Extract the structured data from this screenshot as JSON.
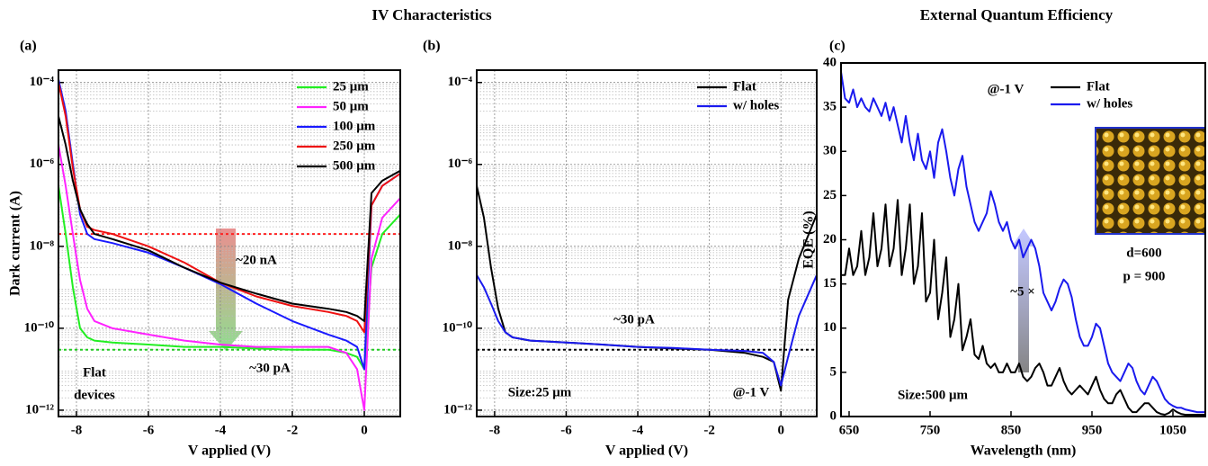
{
  "figure_titles": [
    "IV Characteristics",
    "External Quantum Efficiency"
  ],
  "chart_data": [
    {
      "type": "line",
      "panel_label": "(a)",
      "x_label": "V applied (V)",
      "y_label": "Dark current (A)",
      "y_scale": "log",
      "grid": true,
      "minor_grid": true,
      "legend": "upper right",
      "xlim": [
        -8.5,
        1
      ],
      "xticks": [
        -8,
        -6,
        -4,
        -2,
        0
      ],
      "ylim": [
        7e-13,
        0.0002
      ],
      "yticks": [
        {
          "value": 0.0001,
          "label": "10⁻⁴"
        },
        {
          "value": 1e-06,
          "label": "10⁻⁶"
        },
        {
          "value": 1e-08,
          "label": "10⁻⁸"
        },
        {
          "value": 1e-10,
          "label": "10⁻¹⁰"
        },
        {
          "value": 1e-12,
          "label": "10⁻¹²"
        }
      ],
      "x": [
        -8.5,
        -8.3,
        -8.1,
        -7.9,
        -7.7,
        -7.5,
        -7,
        -6,
        -5,
        -4,
        -3,
        -2,
        -1,
        -0.5,
        -0.2,
        0,
        0.2,
        0.5,
        1
      ],
      "series": [
        {
          "name": "25 μm",
          "color": "#22ee22",
          "values": [
            3e-07,
            2e-08,
            1e-09,
            1e-10,
            6e-11,
            5e-11,
            4.5e-11,
            4e-11,
            3.5e-11,
            3.5e-11,
            3.2e-11,
            3e-11,
            3e-11,
            2.5e-11,
            2e-11,
            1e-11,
            3e-09,
            2e-08,
            6e-08
          ]
        },
        {
          "name": "50 μm",
          "color": "#ff22ff",
          "values": [
            3e-06,
            3e-07,
            2e-08,
            1.5e-09,
            3e-10,
            1.5e-10,
            1e-10,
            7e-11,
            5e-11,
            4e-11,
            3.5e-11,
            3.5e-11,
            3.5e-11,
            2.5e-11,
            1e-11,
            1e-12,
            5e-09,
            5e-08,
            1.5e-07
          ]
        },
        {
          "name": "100 μm",
          "color": "#1a1aff",
          "values": [
            0.00012,
            2e-05,
            1e-06,
            6e-08,
            2e-08,
            1.5e-08,
            1.2e-08,
            7e-09,
            3e-09,
            1.2e-09,
            4e-10,
            1.5e-10,
            7e-11,
            5e-11,
            3.5e-11,
            1e-11,
            1e-07,
            3e-07,
            6e-07
          ]
        },
        {
          "name": "250 μm",
          "color": "#ee1111",
          "values": [
            0.0001,
            1.5e-05,
            8e-07,
            8e-08,
            3e-08,
            2.5e-08,
            2e-08,
            1e-08,
            4e-09,
            1.3e-09,
            6e-10,
            3.5e-10,
            2.5e-10,
            2e-10,
            1.5e-10,
            8e-11,
            1e-07,
            3e-07,
            6e-07
          ]
        },
        {
          "name": "500 μm",
          "color": "#000000",
          "values": [
            1.5e-05,
            3e-06,
            4e-07,
            8e-08,
            3.5e-08,
            2e-08,
            1.5e-08,
            8e-09,
            3e-09,
            1.3e-09,
            7e-10,
            4e-10,
            3e-10,
            2.5e-10,
            2e-10,
            1.5e-10,
            2e-07,
            4e-07,
            7e-07
          ]
        }
      ],
      "hlines": [
        {
          "value": 2e-08,
          "color": "#ff2222"
        },
        {
          "value": 3e-11,
          "color": "#22cc22"
        }
      ],
      "annotations": [
        "~20 nA",
        "~30 pA",
        "Flat",
        "devices"
      ]
    },
    {
      "type": "line",
      "panel_label": "(b)",
      "x_label": "V applied (V)",
      "y_scale": "log",
      "grid": true,
      "minor_grid": true,
      "legend": "upper right",
      "xlim": [
        -8.5,
        1
      ],
      "xticks": [
        -8,
        -6,
        -4,
        -2,
        0
      ],
      "ylim": [
        7e-13,
        0.0002
      ],
      "yticks": [
        {
          "value": 0.0001,
          "label": "10⁻⁴"
        },
        {
          "value": 1e-06,
          "label": "10⁻⁶"
        },
        {
          "value": 1e-08,
          "label": "10⁻⁸"
        },
        {
          "value": 1e-10,
          "label": "10⁻¹⁰"
        },
        {
          "value": 1e-12,
          "label": "10⁻¹²"
        }
      ],
      "x": [
        -8.5,
        -8.3,
        -8.1,
        -7.9,
        -7.7,
        -7.5,
        -7,
        -6,
        -5,
        -4,
        -3,
        -2,
        -1,
        -0.5,
        -0.2,
        0,
        0.2,
        0.5,
        1
      ],
      "series": [
        {
          "name": "Flat",
          "color": "#000000",
          "values": [
            3e-07,
            5e-08,
            3e-09,
            3e-10,
            8e-11,
            6e-11,
            5e-11,
            4.5e-11,
            4e-11,
            3.5e-11,
            3.2e-11,
            3e-11,
            2.5e-11,
            2e-11,
            1.5e-11,
            3e-12,
            5e-10,
            5e-09,
            6e-08
          ]
        },
        {
          "name": "w/ holes",
          "color": "#1a1aee",
          "values": [
            2e-09,
            1e-09,
            4e-10,
            1.5e-10,
            8e-11,
            6e-11,
            5e-11,
            4.5e-11,
            4e-11,
            3.5e-11,
            3.3e-11,
            3e-11,
            2.8e-11,
            2.5e-11,
            1.5e-11,
            4e-12,
            2e-11,
            2e-10,
            2e-09
          ]
        }
      ],
      "hlines": [
        {
          "value": 3e-11,
          "color": "#000000"
        }
      ],
      "annotations": [
        "~30 pA",
        "Size:25 μm",
        "@-1 V"
      ]
    },
    {
      "type": "line",
      "panel_label": "(c)",
      "x_label": "Wavelength (nm)",
      "y_label": "EQE (%)",
      "grid": false,
      "legend": "upper right",
      "xlim": [
        640,
        1090
      ],
      "xticks": [
        650,
        750,
        850,
        950,
        1050
      ],
      "ylim": [
        0,
        40
      ],
      "yticks": [
        0,
        5,
        10,
        15,
        20,
        25,
        30,
        35,
        40
      ],
      "x": [
        640,
        645,
        650,
        655,
        660,
        665,
        670,
        675,
        680,
        685,
        690,
        695,
        700,
        705,
        710,
        715,
        720,
        725,
        730,
        735,
        740,
        745,
        750,
        755,
        760,
        765,
        770,
        775,
        780,
        785,
        790,
        795,
        800,
        805,
        810,
        815,
        820,
        825,
        830,
        835,
        840,
        845,
        850,
        855,
        860,
        865,
        870,
        875,
        880,
        885,
        890,
        895,
        900,
        905,
        910,
        915,
        920,
        925,
        930,
        935,
        940,
        945,
        950,
        955,
        960,
        965,
        970,
        975,
        980,
        985,
        990,
        995,
        1000,
        1005,
        1010,
        1015,
        1020,
        1025,
        1030,
        1035,
        1040,
        1045,
        1050,
        1055,
        1060,
        1065,
        1070,
        1075,
        1080,
        1085,
        1090
      ],
      "series": [
        {
          "name": "Flat",
          "color": "#000000",
          "values": [
            16,
            16,
            19,
            16,
            17,
            21,
            16,
            18,
            23,
            17,
            19,
            24,
            17,
            19,
            24.5,
            16,
            19,
            24,
            15,
            17,
            23,
            13,
            14,
            20,
            11,
            14,
            18,
            9,
            11,
            15,
            7.5,
            9,
            11,
            7,
            6.5,
            8,
            6,
            5.5,
            6,
            5,
            5,
            6,
            5,
            5,
            6,
            4.5,
            4,
            4.5,
            5.5,
            6,
            5,
            3.5,
            3.5,
            4.5,
            5.5,
            4,
            3,
            2.5,
            3,
            3.5,
            3,
            2.5,
            3.5,
            4.5,
            3,
            2,
            1.5,
            1.5,
            2.5,
            3,
            2,
            1,
            0.5,
            0.5,
            1,
            1.5,
            1.5,
            1,
            0.5,
            0.3,
            0.2,
            0.4,
            0.8,
            0.5,
            0.3,
            0.2,
            0.2,
            0.2,
            0.2,
            0.2,
            0.2
          ]
        },
        {
          "name": "w/ holes",
          "color": "#1a1aee",
          "values": [
            39,
            36,
            35.5,
            37,
            35,
            36,
            35,
            34.5,
            36,
            35,
            34,
            35.5,
            33.5,
            35,
            33,
            31,
            34,
            31,
            29,
            32,
            29,
            28,
            30,
            27,
            31,
            32.5,
            30,
            27,
            25,
            28,
            29.5,
            26,
            24,
            22,
            21,
            22,
            23,
            25.5,
            24,
            22,
            21,
            22,
            20,
            19,
            20,
            18,
            19,
            20,
            19,
            17,
            14,
            13,
            12,
            13,
            14.5,
            15.5,
            15,
            13.5,
            11,
            9,
            8,
            8,
            9,
            10.5,
            10,
            8,
            6,
            5,
            4.5,
            4,
            5,
            6,
            5.5,
            4,
            3,
            2.5,
            3.5,
            4.5,
            4,
            3,
            2,
            1.5,
            1.2,
            1,
            1,
            0.8,
            0.7,
            0.6,
            0.5,
            0.5,
            0.5
          ]
        }
      ],
      "annotations": [
        "@-1 V",
        "d=600",
        "p = 900",
        "~5 ×",
        "Size:500 μm"
      ]
    }
  ]
}
